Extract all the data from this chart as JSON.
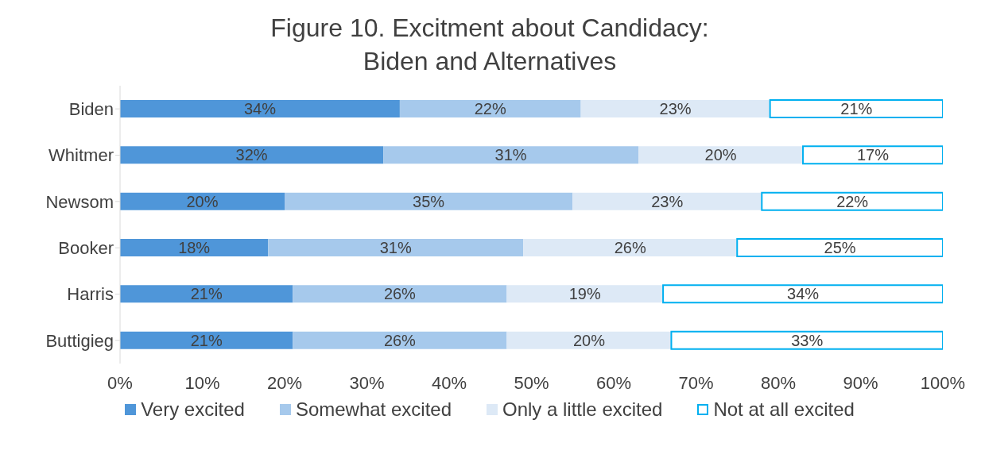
{
  "chart_data": {
    "type": "bar",
    "orientation": "horizontal",
    "stacked": true,
    "title": "Figure 10. Excitment about Candidacy:\nBiden and Alternatives",
    "categories": [
      "Biden",
      "Whitmer",
      "Newsom",
      "Booker",
      "Harris",
      "Buttigieg"
    ],
    "series": [
      {
        "name": "Very excited",
        "color": "#4f96d9",
        "values": [
          34,
          32,
          20,
          18,
          21,
          21
        ],
        "value_labels": [
          "34%",
          "32%",
          "20%",
          "18%",
          "21%",
          "21%"
        ]
      },
      {
        "name": "Somewhat excited",
        "color": "#a6c9ec",
        "values": [
          22,
          31,
          35,
          31,
          26,
          26
        ],
        "value_labels": [
          "22%",
          "31%",
          "35%",
          "31%",
          "26%",
          "26%"
        ]
      },
      {
        "name": "Only a little excited",
        "color": "#dde9f6",
        "values": [
          23,
          20,
          23,
          26,
          19,
          20
        ],
        "value_labels": [
          "23%",
          "20%",
          "23%",
          "26%",
          "19%",
          "20%"
        ]
      },
      {
        "name": "Not at all excited",
        "color": "#ffffff",
        "values": [
          21,
          17,
          22,
          25,
          34,
          33
        ],
        "value_labels": [
          "21%",
          "17%",
          "22%",
          "25%",
          "34%",
          "33%"
        ]
      }
    ],
    "xlim": [
      0,
      100
    ],
    "xticks": [
      {
        "value": 0,
        "label": "0%"
      },
      {
        "value": 10,
        "label": "10%"
      },
      {
        "value": 20,
        "label": "20%"
      },
      {
        "value": 30,
        "label": "30%"
      },
      {
        "value": 40,
        "label": "40%"
      },
      {
        "value": 50,
        "label": "50%"
      },
      {
        "value": 60,
        "label": "60%"
      },
      {
        "value": 70,
        "label": "70%"
      },
      {
        "value": 80,
        "label": "80%"
      },
      {
        "value": 90,
        "label": "90%"
      },
      {
        "value": 100,
        "label": "100%"
      }
    ],
    "legend": "bottom",
    "grid": false
  }
}
